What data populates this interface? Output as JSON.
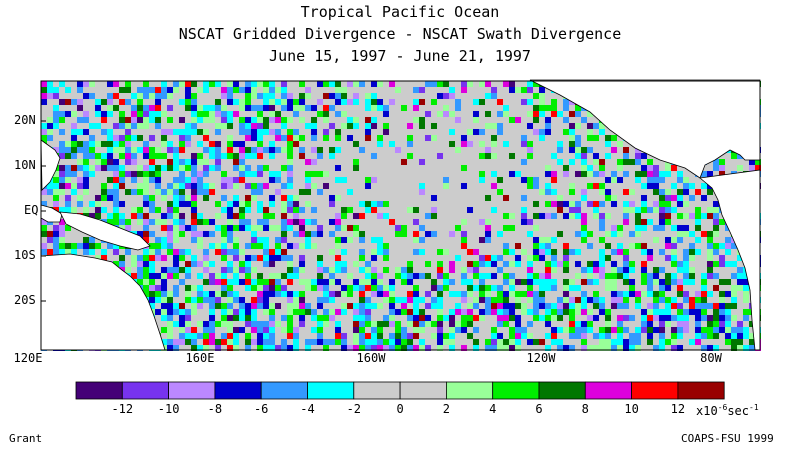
{
  "title": {
    "line1": "Tropical Pacific Ocean",
    "line2": "NSCAT Gridded Divergence - NSCAT Swath Divergence",
    "line3": "June 15, 1997 - June 21, 1997"
  },
  "axes": {
    "x_labels": [
      "120E",
      "160E",
      "160W",
      "120W",
      "80W"
    ],
    "y_labels": [
      "20N",
      "10N",
      "EQ",
      "10S",
      "20S"
    ]
  },
  "legend": {
    "colors": [
      "#440077",
      "#7733ee",
      "#bb88ff",
      "#0000cc",
      "#3399ff",
      "#00ffff",
      "#cccccc",
      "#cccccc",
      "#99ff99",
      "#00ee00",
      "#007700",
      "#dd00dd",
      "#ff0000",
      "#990000"
    ],
    "tick_labels": [
      "-12",
      "-10",
      "-8",
      "-6",
      "-4",
      "-2",
      "0",
      "2",
      "4",
      "6",
      "8",
      "10",
      "12"
    ],
    "units_prefix": "x10",
    "units_exponent": "-6",
    "units_suffix": "sec",
    "units_suffix_exponent": "-1"
  },
  "credits": {
    "left": "Grant",
    "right": "COAPS-FSU 1999"
  }
}
